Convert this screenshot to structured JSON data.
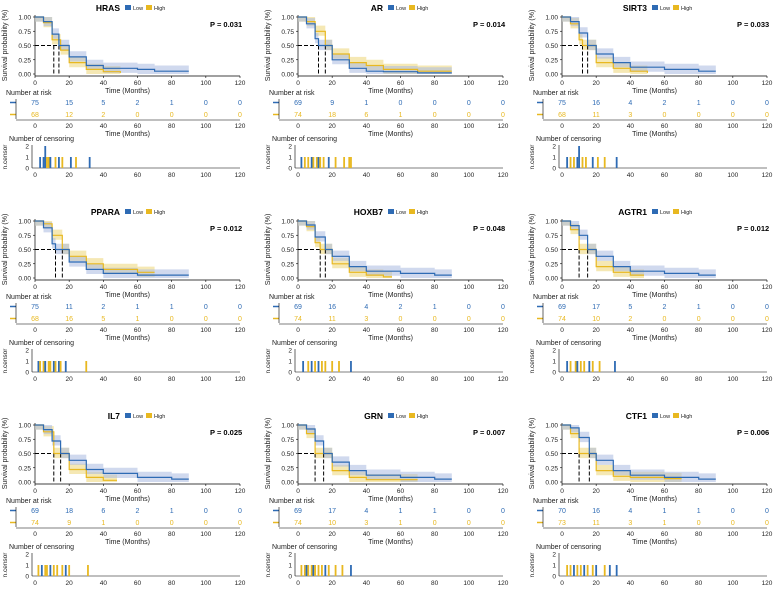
{
  "colors": {
    "low": "#2e6bb4",
    "high": "#e8b820",
    "low_band": "#a9b9e0",
    "high_band": "#f0dc8c",
    "axis": "#000000"
  },
  "labels": {
    "legend_low": "Low",
    "legend_high": "High",
    "y_survival": "Survival probability (%)",
    "x_time": "Time (Months)",
    "risk_title": "Number at risk",
    "censor_title": "Number of censoring",
    "y_censor": "n.censor"
  },
  "axes": {
    "km_yticks": [
      "0.00",
      "0.25",
      "0.50",
      "0.75",
      "1.00"
    ],
    "km_ytick_values": [
      0,
      0.25,
      0.5,
      0.75,
      1.0
    ],
    "xticks": [
      "0",
      "20",
      "40",
      "60",
      "80",
      "100",
      "120"
    ],
    "xtick_values": [
      0,
      20,
      40,
      60,
      80,
      100,
      120
    ],
    "censor_yticks": [
      "0",
      "1",
      "2"
    ],
    "censor_ytick_values": [
      0,
      1,
      2
    ]
  },
  "chart_data": [
    {
      "type": "line",
      "gene": "HRAS",
      "p": "P = 0.031",
      "medians": [
        14,
        11
      ],
      "low": [
        [
          0,
          1
        ],
        [
          5,
          0.92
        ],
        [
          10,
          0.7
        ],
        [
          14,
          0.5
        ],
        [
          20,
          0.3
        ],
        [
          30,
          0.15
        ],
        [
          40,
          0.1
        ],
        [
          60,
          0.08
        ],
        [
          70,
          0.05
        ],
        [
          90,
          0.05
        ]
      ],
      "high": [
        [
          0,
          1
        ],
        [
          5,
          0.9
        ],
        [
          10,
          0.6
        ],
        [
          15,
          0.42
        ],
        [
          20,
          0.2
        ],
        [
          30,
          0.08
        ],
        [
          40,
          0.04
        ],
        [
          50,
          0.02
        ]
      ],
      "risk_low": [
        "75",
        "15",
        "5",
        "2",
        "1",
        "0",
        "0"
      ],
      "risk_high": [
        "68",
        "12",
        "2",
        "0",
        "0",
        "0",
        "0"
      ],
      "censor": [
        [
          3,
          1,
          "low"
        ],
        [
          5,
          1,
          "low"
        ],
        [
          6,
          2,
          "low"
        ],
        [
          7,
          1,
          "high"
        ],
        [
          8,
          1,
          "high"
        ],
        [
          9,
          1,
          "low"
        ],
        [
          12,
          1,
          "high"
        ],
        [
          14,
          1,
          "low"
        ],
        [
          16,
          1,
          "high"
        ],
        [
          21,
          1,
          "low"
        ],
        [
          24,
          1,
          "high"
        ],
        [
          32,
          1,
          "low"
        ]
      ]
    },
    {
      "type": "line",
      "gene": "AR",
      "p": "P = 0.014",
      "medians": [
        12,
        16
      ],
      "low": [
        [
          0,
          1
        ],
        [
          5,
          0.88
        ],
        [
          10,
          0.62
        ],
        [
          12,
          0.5
        ],
        [
          20,
          0.25
        ],
        [
          30,
          0.1
        ],
        [
          40,
          0.05
        ],
        [
          50,
          0.04
        ],
        [
          70,
          0.02
        ],
        [
          90,
          0.02
        ]
      ],
      "high": [
        [
          0,
          1
        ],
        [
          5,
          0.92
        ],
        [
          10,
          0.75
        ],
        [
          16,
          0.5
        ],
        [
          20,
          0.35
        ],
        [
          30,
          0.2
        ],
        [
          40,
          0.15
        ],
        [
          50,
          0.08
        ],
        [
          70,
          0.05
        ],
        [
          90,
          0.05
        ]
      ],
      "risk_low": [
        "69",
        "9",
        "1",
        "0",
        "0",
        "0",
        "0"
      ],
      "risk_high": [
        "74",
        "18",
        "6",
        "1",
        "0",
        "0",
        "0"
      ],
      "censor": [
        [
          2,
          1,
          "low"
        ],
        [
          4,
          1,
          "high"
        ],
        [
          6,
          1,
          "high"
        ],
        [
          8,
          1,
          "low"
        ],
        [
          9,
          1,
          "high"
        ],
        [
          11,
          1,
          "high"
        ],
        [
          12,
          1,
          "low"
        ],
        [
          13,
          1,
          "high"
        ],
        [
          15,
          1,
          "high"
        ],
        [
          18,
          1,
          "low"
        ],
        [
          22,
          1,
          "high"
        ],
        [
          27,
          1,
          "high"
        ],
        [
          30,
          1,
          "high"
        ],
        [
          31,
          1,
          "high"
        ]
      ]
    },
    {
      "type": "line",
      "gene": "SIRT3",
      "p": "P = 0.033",
      "medians": [
        15,
        12
      ],
      "low": [
        [
          0,
          1
        ],
        [
          5,
          0.92
        ],
        [
          10,
          0.72
        ],
        [
          15,
          0.5
        ],
        [
          20,
          0.35
        ],
        [
          30,
          0.2
        ],
        [
          40,
          0.12
        ],
        [
          60,
          0.08
        ],
        [
          80,
          0.05
        ],
        [
          90,
          0.05
        ]
      ],
      "high": [
        [
          0,
          1
        ],
        [
          5,
          0.88
        ],
        [
          10,
          0.6
        ],
        [
          12,
          0.5
        ],
        [
          20,
          0.2
        ],
        [
          30,
          0.1
        ],
        [
          40,
          0.05
        ],
        [
          50,
          0.02
        ]
      ],
      "risk_low": [
        "75",
        "16",
        "4",
        "2",
        "1",
        "0",
        "0"
      ],
      "risk_high": [
        "68",
        "11",
        "3",
        "0",
        "0",
        "0",
        "0"
      ],
      "censor": [
        [
          3,
          1,
          "low"
        ],
        [
          5,
          1,
          "high"
        ],
        [
          7,
          1,
          "high"
        ],
        [
          9,
          1,
          "low"
        ],
        [
          10,
          2,
          "low"
        ],
        [
          12,
          1,
          "high"
        ],
        [
          14,
          1,
          "high"
        ],
        [
          18,
          1,
          "low"
        ],
        [
          21,
          1,
          "high"
        ],
        [
          25,
          1,
          "high"
        ],
        [
          32,
          1,
          "low"
        ]
      ]
    },
    {
      "type": "line",
      "gene": "PPARA",
      "p": "P = 0.012",
      "medians": [
        12,
        16
      ],
      "low": [
        [
          0,
          1
        ],
        [
          5,
          0.88
        ],
        [
          10,
          0.6
        ],
        [
          12,
          0.5
        ],
        [
          20,
          0.28
        ],
        [
          30,
          0.15
        ],
        [
          40,
          0.08
        ],
        [
          60,
          0.05
        ],
        [
          90,
          0.05
        ]
      ],
      "high": [
        [
          0,
          1
        ],
        [
          5,
          0.95
        ],
        [
          10,
          0.75
        ],
        [
          16,
          0.5
        ],
        [
          20,
          0.38
        ],
        [
          30,
          0.25
        ],
        [
          40,
          0.15
        ],
        [
          60,
          0.1
        ],
        [
          70,
          0.1
        ]
      ],
      "risk_low": [
        "75",
        "11",
        "2",
        "1",
        "1",
        "0",
        "0"
      ],
      "risk_high": [
        "68",
        "16",
        "5",
        "1",
        "0",
        "0",
        "0"
      ],
      "censor": [
        [
          2,
          1,
          "low"
        ],
        [
          3,
          1,
          "high"
        ],
        [
          5,
          1,
          "high"
        ],
        [
          6,
          1,
          "low"
        ],
        [
          8,
          1,
          "high"
        ],
        [
          9,
          1,
          "high"
        ],
        [
          11,
          1,
          "low"
        ],
        [
          12,
          1,
          "high"
        ],
        [
          14,
          1,
          "low"
        ],
        [
          15,
          1,
          "high"
        ],
        [
          18,
          1,
          "low"
        ],
        [
          30,
          1,
          "high"
        ]
      ]
    },
    {
      "type": "line",
      "gene": "HOXB7",
      "p": "P = 0.048",
      "medians": [
        16,
        13
      ],
      "low": [
        [
          0,
          1
        ],
        [
          5,
          0.93
        ],
        [
          10,
          0.72
        ],
        [
          16,
          0.5
        ],
        [
          20,
          0.38
        ],
        [
          30,
          0.2
        ],
        [
          40,
          0.12
        ],
        [
          60,
          0.08
        ],
        [
          80,
          0.05
        ],
        [
          90,
          0.05
        ]
      ],
      "high": [
        [
          0,
          1
        ],
        [
          5,
          0.9
        ],
        [
          10,
          0.62
        ],
        [
          13,
          0.5
        ],
        [
          20,
          0.25
        ],
        [
          30,
          0.1
        ],
        [
          40,
          0.05
        ],
        [
          50,
          0.02
        ],
        [
          55,
          0.02
        ]
      ],
      "risk_low": [
        "69",
        "16",
        "4",
        "2",
        "1",
        "0",
        "0"
      ],
      "risk_high": [
        "74",
        "11",
        "3",
        "0",
        "0",
        "0",
        "0"
      ],
      "censor": [
        [
          3,
          1,
          "low"
        ],
        [
          6,
          1,
          "high"
        ],
        [
          8,
          1,
          "low"
        ],
        [
          10,
          1,
          "high"
        ],
        [
          12,
          1,
          "low"
        ],
        [
          14,
          1,
          "high"
        ],
        [
          16,
          1,
          "high"
        ],
        [
          20,
          1,
          "high"
        ],
        [
          24,
          1,
          "high"
        ],
        [
          31,
          1,
          "low"
        ]
      ]
    },
    {
      "type": "line",
      "gene": "AGTR1",
      "p": "P = 0.012",
      "medians": [
        15,
        10
      ],
      "low": [
        [
          0,
          1
        ],
        [
          5,
          0.92
        ],
        [
          10,
          0.75
        ],
        [
          15,
          0.5
        ],
        [
          20,
          0.38
        ],
        [
          30,
          0.2
        ],
        [
          40,
          0.12
        ],
        [
          60,
          0.08
        ],
        [
          80,
          0.05
        ],
        [
          90,
          0.05
        ]
      ],
      "high": [
        [
          0,
          1
        ],
        [
          5,
          0.85
        ],
        [
          10,
          0.5
        ],
        [
          20,
          0.2
        ],
        [
          30,
          0.1
        ],
        [
          40,
          0.05
        ],
        [
          48,
          0.05
        ]
      ],
      "risk_low": [
        "69",
        "17",
        "5",
        "2",
        "1",
        "0",
        "0"
      ],
      "risk_high": [
        "74",
        "10",
        "2",
        "0",
        "0",
        "0",
        "0"
      ],
      "censor": [
        [
          3,
          1,
          "low"
        ],
        [
          5,
          1,
          "high"
        ],
        [
          8,
          1,
          "high"
        ],
        [
          9,
          1,
          "low"
        ],
        [
          11,
          1,
          "high"
        ],
        [
          13,
          1,
          "high"
        ],
        [
          16,
          1,
          "low"
        ],
        [
          18,
          1,
          "high"
        ],
        [
          22,
          1,
          "high"
        ],
        [
          31,
          1,
          "low"
        ]
      ]
    },
    {
      "type": "line",
      "gene": "IL7",
      "p": "P = 0.025",
      "medians": [
        15,
        11
      ],
      "low": [
        [
          0,
          1
        ],
        [
          5,
          0.92
        ],
        [
          10,
          0.72
        ],
        [
          15,
          0.5
        ],
        [
          20,
          0.38
        ],
        [
          30,
          0.22
        ],
        [
          40,
          0.15
        ],
        [
          60,
          0.08
        ],
        [
          80,
          0.05
        ],
        [
          90,
          0.05
        ]
      ],
      "high": [
        [
          0,
          1
        ],
        [
          5,
          0.88
        ],
        [
          11,
          0.5
        ],
        [
          20,
          0.22
        ],
        [
          30,
          0.08
        ],
        [
          40,
          0.03
        ],
        [
          48,
          0.03
        ]
      ],
      "risk_low": [
        "69",
        "18",
        "6",
        "2",
        "1",
        "0",
        "0"
      ],
      "risk_high": [
        "74",
        "9",
        "1",
        "0",
        "0",
        "0",
        "0"
      ],
      "censor": [
        [
          2,
          1,
          "high"
        ],
        [
          4,
          1,
          "low"
        ],
        [
          6,
          1,
          "high"
        ],
        [
          7,
          1,
          "high"
        ],
        [
          9,
          1,
          "low"
        ],
        [
          11,
          1,
          "high"
        ],
        [
          13,
          1,
          "high"
        ],
        [
          16,
          1,
          "high"
        ],
        [
          18,
          1,
          "low"
        ],
        [
          20,
          1,
          "high"
        ],
        [
          31,
          1,
          "high"
        ]
      ]
    },
    {
      "type": "line",
      "gene": "GRN",
      "p": "P = 0.007",
      "medians": [
        15,
        10
      ],
      "low": [
        [
          0,
          1
        ],
        [
          5,
          0.93
        ],
        [
          10,
          0.72
        ],
        [
          15,
          0.5
        ],
        [
          20,
          0.35
        ],
        [
          30,
          0.2
        ],
        [
          40,
          0.12
        ],
        [
          60,
          0.08
        ],
        [
          80,
          0.05
        ],
        [
          90,
          0.05
        ]
      ],
      "high": [
        [
          0,
          1
        ],
        [
          5,
          0.85
        ],
        [
          10,
          0.5
        ],
        [
          20,
          0.2
        ],
        [
          30,
          0.08
        ],
        [
          40,
          0.04
        ],
        [
          60,
          0.04
        ],
        [
          70,
          0.04
        ]
      ],
      "risk_low": [
        "69",
        "17",
        "4",
        "1",
        "1",
        "0",
        "0"
      ],
      "risk_high": [
        "74",
        "10",
        "3",
        "1",
        "0",
        "0",
        "0"
      ],
      "censor": [
        [
          2,
          1,
          "high"
        ],
        [
          4,
          1,
          "high"
        ],
        [
          5,
          1,
          "low"
        ],
        [
          6,
          1,
          "high"
        ],
        [
          8,
          1,
          "high"
        ],
        [
          9,
          1,
          "low"
        ],
        [
          10,
          1,
          "high"
        ],
        [
          12,
          1,
          "high"
        ],
        [
          14,
          1,
          "high"
        ],
        [
          16,
          1,
          "low"
        ],
        [
          18,
          1,
          "high"
        ],
        [
          22,
          1,
          "high"
        ],
        [
          26,
          1,
          "high"
        ],
        [
          31,
          1,
          "low"
        ]
      ]
    },
    {
      "type": "line",
      "gene": "CTF1",
      "p": "P = 0.006",
      "medians": [
        16,
        10
      ],
      "low": [
        [
          0,
          1
        ],
        [
          5,
          0.95
        ],
        [
          10,
          0.78
        ],
        [
          16,
          0.5
        ],
        [
          20,
          0.38
        ],
        [
          30,
          0.2
        ],
        [
          40,
          0.12
        ],
        [
          60,
          0.08
        ],
        [
          80,
          0.05
        ],
        [
          90,
          0.05
        ]
      ],
      "high": [
        [
          0,
          1
        ],
        [
          5,
          0.85
        ],
        [
          10,
          0.5
        ],
        [
          20,
          0.2
        ],
        [
          30,
          0.1
        ],
        [
          40,
          0.08
        ],
        [
          60,
          0.06
        ],
        [
          70,
          0.06
        ]
      ],
      "risk_low": [
        "70",
        "16",
        "4",
        "1",
        "1",
        "0",
        "0"
      ],
      "risk_high": [
        "73",
        "11",
        "3",
        "1",
        "0",
        "0",
        "0"
      ],
      "censor": [
        [
          3,
          1,
          "high"
        ],
        [
          5,
          1,
          "high"
        ],
        [
          7,
          1,
          "low"
        ],
        [
          9,
          1,
          "high"
        ],
        [
          11,
          1,
          "high"
        ],
        [
          13,
          1,
          "low"
        ],
        [
          15,
          1,
          "high"
        ],
        [
          18,
          1,
          "high"
        ],
        [
          20,
          1,
          "low"
        ],
        [
          25,
          1,
          "high"
        ],
        [
          28,
          1,
          "low"
        ],
        [
          32,
          1,
          "low"
        ]
      ]
    }
  ]
}
